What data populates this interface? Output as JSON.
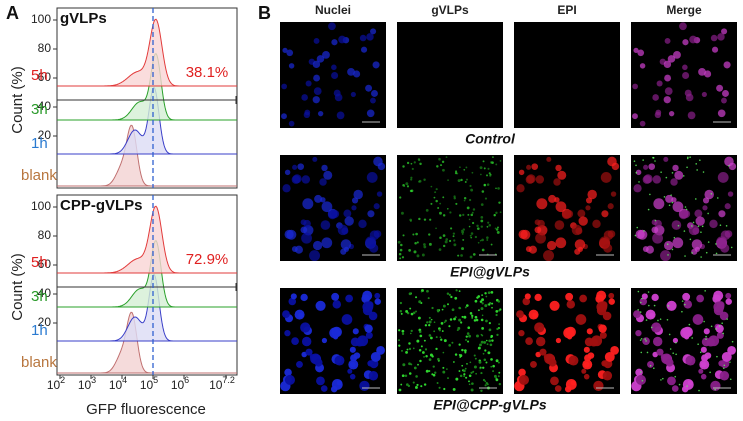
{
  "panel_a": {
    "label": "A",
    "y_label": "Count (%)",
    "x_label": "GFP fluorescence",
    "y_ticks": [
      "100",
      "80",
      "60",
      "40",
      "20"
    ],
    "x_ticks": [
      {
        "base": "10",
        "exp": "2"
      },
      {
        "base": "10",
        "exp": "3"
      },
      {
        "base": "10",
        "exp": "4"
      },
      {
        "base": "10",
        "exp": "5"
      },
      {
        "base": "10",
        "exp": "6"
      },
      {
        "base": "10",
        "exp": "7.2"
      }
    ],
    "plots": [
      {
        "title": "gVLPs",
        "labels": [
          "5h",
          "3h",
          "1h",
          "blank"
        ],
        "percent": "38.1%"
      },
      {
        "title": "CPP-gVLPs",
        "labels": [
          "5h",
          "3h",
          "1h",
          "blank"
        ],
        "percent": "72.9%"
      }
    ]
  },
  "panel_b": {
    "label": "B",
    "columns": [
      "Nuclei",
      "gVLPs",
      "EPI",
      "Merge"
    ],
    "rows": [
      "Control",
      "EPI@gVLPs",
      "EPI@CPP-gVLPs"
    ]
  }
}
